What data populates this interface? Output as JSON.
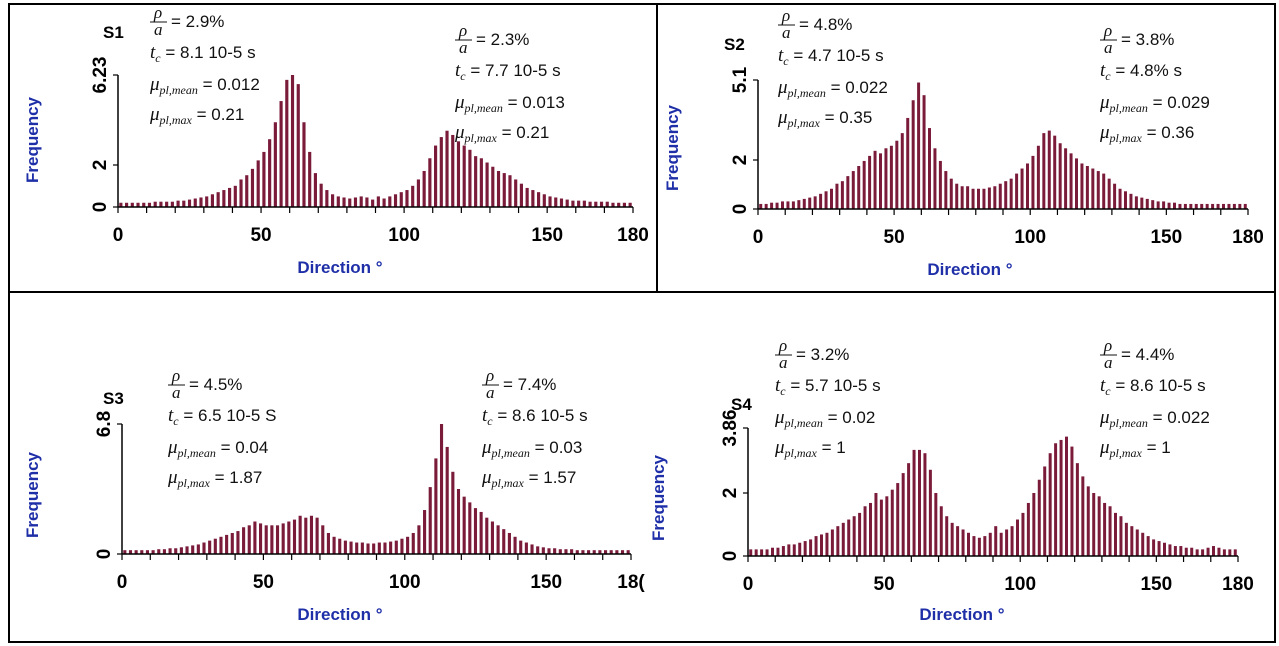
{
  "colors": {
    "bar": "#7b1b3a",
    "axis_label": "#1f2fa8",
    "border": "#000000"
  },
  "chart_data": [
    {
      "type": "bar",
      "panel_label": "S1",
      "xlabel": "Direction °",
      "ylabel": "Frequency",
      "xlim": [
        0,
        180
      ],
      "ylim": [
        0,
        6.23
      ],
      "xticks": [
        "0",
        "50",
        "100",
        "150",
        "180"
      ],
      "yticks": [
        "0",
        "2",
        "6.23"
      ],
      "annotations": [
        {
          "rho_a": "= 2.9%",
          "tc": "= 8.1 10-5 s",
          "mu_mean": "= 0.012",
          "mu_max": "= 0.21"
        },
        {
          "rho_a": "= 2.3%",
          "tc": "= 7.7 10-5 s",
          "mu_mean": "= 0.013",
          "mu_max": "= 0.21"
        }
      ],
      "bin_width": 2,
      "values": [
        0.2,
        0.2,
        0.2,
        0.2,
        0.2,
        0.2,
        0.25,
        0.25,
        0.25,
        0.25,
        0.3,
        0.3,
        0.35,
        0.4,
        0.45,
        0.5,
        0.6,
        0.7,
        0.8,
        0.9,
        1.0,
        1.3,
        1.5,
        1.8,
        2.2,
        2.6,
        3.2,
        4.0,
        5.0,
        6.0,
        6.23,
        5.8,
        4.0,
        2.6,
        1.6,
        1.1,
        0.8,
        0.6,
        0.5,
        0.45,
        0.4,
        0.45,
        0.5,
        0.45,
        0.35,
        0.5,
        0.4,
        0.5,
        0.6,
        0.7,
        0.8,
        1.0,
        1.3,
        1.7,
        2.3,
        2.9,
        3.3,
        3.6,
        3.4,
        3.1,
        2.9,
        2.7,
        2.4,
        2.3,
        2.1,
        1.9,
        1.7,
        1.6,
        1.5,
        1.3,
        1.1,
        0.9,
        0.8,
        0.7,
        0.6,
        0.5,
        0.45,
        0.4,
        0.35,
        0.3,
        0.3,
        0.3,
        0.25,
        0.25,
        0.25,
        0.25,
        0.2,
        0.2,
        0.2,
        0.2
      ]
    },
    {
      "type": "bar",
      "panel_label": "S2",
      "xlabel": "Direction °",
      "ylabel": "Frequency",
      "xlim": [
        0,
        180
      ],
      "ylim": [
        0,
        5.1
      ],
      "xticks": [
        "0",
        "50",
        "100",
        "150",
        "180"
      ],
      "yticks": [
        "0",
        "2",
        "5.1"
      ],
      "annotations": [
        {
          "rho_a": "= 4.8%",
          "tc": "= 4.7 10-5 s",
          "mu_mean": "= 0.022",
          "mu_max": "= 0.35"
        },
        {
          "rho_a": "= 3.8%",
          "tc": "= 4.8% s",
          "mu_mean": "= 0.029",
          "mu_max": "= 0.36"
        }
      ],
      "bin_width": 2,
      "values": [
        0.2,
        0.2,
        0.25,
        0.25,
        0.3,
        0.3,
        0.3,
        0.35,
        0.4,
        0.45,
        0.5,
        0.6,
        0.7,
        0.8,
        1.0,
        1.1,
        1.3,
        1.5,
        1.7,
        1.9,
        2.1,
        2.3,
        2.2,
        2.4,
        2.5,
        2.7,
        3.0,
        3.6,
        4.3,
        5.0,
        4.5,
        3.2,
        2.4,
        1.9,
        1.5,
        1.2,
        1.0,
        0.9,
        0.9,
        0.8,
        0.8,
        0.8,
        0.85,
        0.9,
        1.0,
        1.1,
        1.2,
        1.4,
        1.6,
        1.8,
        2.1,
        2.5,
        3.0,
        3.1,
        2.9,
        2.6,
        2.4,
        2.2,
        2.0,
        1.8,
        1.7,
        1.6,
        1.5,
        1.4,
        1.2,
        1.0,
        0.8,
        0.7,
        0.6,
        0.5,
        0.45,
        0.4,
        0.35,
        0.3,
        0.3,
        0.25,
        0.25,
        0.2,
        0.2,
        0.2,
        0.2,
        0.2,
        0.2,
        0.2,
        0.2,
        0.2,
        0.2,
        0.2,
        0.2,
        0.2
      ]
    },
    {
      "type": "bar",
      "panel_label": "S3",
      "xlabel": "Direction °",
      "ylabel": "Frequency",
      "xlim": [
        0,
        180
      ],
      "ylim": [
        0,
        6.8
      ],
      "xticks": [
        "0",
        "50",
        "100",
        "150",
        "18("
      ],
      "yticks": [
        "0",
        "6.8"
      ],
      "annotations": [
        {
          "rho_a": "= 4.5%",
          "tc": "= 6.5 10-5 S",
          "mu_mean": "= 0.04",
          "mu_max": "= 1.87"
        },
        {
          "rho_a": "= 7.4%",
          "tc": "= 8.6 10-5 s",
          "mu_mean": "= 0.03",
          "mu_max": "= 1.57"
        }
      ],
      "bin_width": 2,
      "values": [
        0.2,
        0.2,
        0.2,
        0.2,
        0.2,
        0.2,
        0.25,
        0.25,
        0.3,
        0.3,
        0.35,
        0.4,
        0.45,
        0.5,
        0.6,
        0.7,
        0.8,
        0.9,
        1.0,
        1.1,
        1.2,
        1.4,
        1.5,
        1.7,
        1.6,
        1.5,
        1.5,
        1.5,
        1.6,
        1.7,
        1.8,
        2.0,
        1.9,
        2.0,
        1.9,
        1.5,
        1.1,
        0.9,
        0.8,
        0.7,
        0.65,
        0.6,
        0.6,
        0.55,
        0.55,
        0.6,
        0.6,
        0.65,
        0.7,
        0.8,
        0.9,
        1.1,
        1.5,
        2.3,
        3.5,
        5.0,
        6.8,
        5.6,
        4.3,
        3.4,
        3.0,
        2.7,
        2.4,
        2.2,
        1.9,
        1.7,
        1.5,
        1.3,
        1.1,
        0.9,
        0.7,
        0.6,
        0.5,
        0.4,
        0.35,
        0.3,
        0.3,
        0.25,
        0.25,
        0.25,
        0.2,
        0.2,
        0.2,
        0.2,
        0.2,
        0.2,
        0.2,
        0.2,
        0.2,
        0.2
      ]
    },
    {
      "type": "bar",
      "panel_label": "S4",
      "xlabel": "Direction °",
      "ylabel": "Frequency",
      "xlim": [
        0,
        180
      ],
      "ylim": [
        0,
        3.86
      ],
      "xticks": [
        "0",
        "50",
        "100",
        "150",
        "180"
      ],
      "yticks": [
        "0",
        "2",
        "3.86"
      ],
      "annotations": [
        {
          "rho_a": "= 3.2%",
          "tc": "= 5.7 10-5 s",
          "mu_mean": "= 0.02",
          "mu_max": "= 1"
        },
        {
          "rho_a": "= 4.4%",
          "tc": "= 8.6 10-5 s",
          "mu_mean": "= 0.022",
          "mu_max": "= 1"
        }
      ],
      "bin_width": 2,
      "values": [
        0.2,
        0.2,
        0.2,
        0.2,
        0.25,
        0.25,
        0.3,
        0.35,
        0.35,
        0.4,
        0.45,
        0.5,
        0.6,
        0.65,
        0.7,
        0.8,
        0.9,
        1.0,
        1.1,
        1.2,
        1.3,
        1.5,
        1.6,
        1.9,
        1.7,
        1.8,
        2.0,
        2.2,
        2.5,
        2.8,
        3.2,
        3.2,
        3.1,
        2.6,
        1.9,
        1.5,
        1.2,
        1.0,
        0.9,
        0.8,
        0.7,
        0.6,
        0.55,
        0.6,
        0.7,
        0.9,
        0.7,
        0.8,
        0.9,
        1.1,
        1.3,
        1.6,
        1.9,
        2.3,
        2.7,
        3.1,
        3.4,
        3.5,
        3.6,
        3.3,
        2.8,
        2.4,
        2.1,
        1.9,
        1.8,
        1.6,
        1.5,
        1.3,
        1.2,
        1.0,
        0.9,
        0.8,
        0.7,
        0.6,
        0.5,
        0.45,
        0.4,
        0.35,
        0.3,
        0.3,
        0.25,
        0.25,
        0.2,
        0.2,
        0.25,
        0.3,
        0.25,
        0.2,
        0.2,
        0.2
      ]
    }
  ]
}
